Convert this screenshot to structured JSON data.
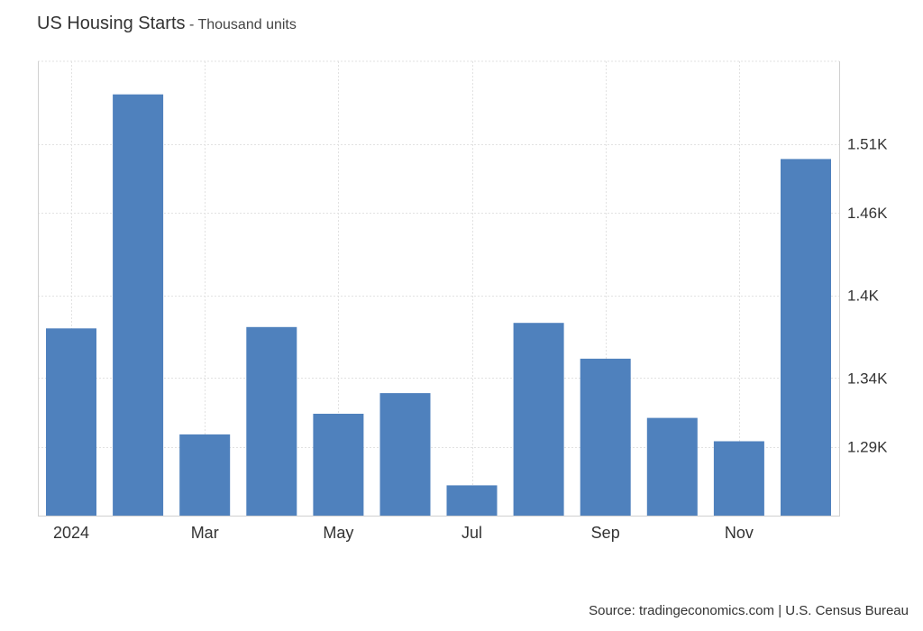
{
  "title": "US Housing Starts",
  "title_separator": " - ",
  "unit_label": "Thousand units",
  "source": "Source: tradingeconomics.com | U.S. Census Bureau",
  "colors": {
    "bar": "#4f81bd",
    "grid": "#e2e2e2",
    "axis": "#d0d0d0",
    "text": "#333333"
  },
  "chart_data": {
    "type": "bar",
    "x_tick_labels": [
      "2024",
      "",
      "Mar",
      "",
      "May",
      "",
      "Jul",
      "",
      "Sep",
      "",
      "Nov",
      ""
    ],
    "series": [
      {
        "values": [
          1376,
          1546,
          1299,
          1377,
          1314,
          1329,
          1262,
          1380,
          1354,
          1311,
          1294,
          1499
        ]
      }
    ],
    "y_ticks": [
      1290,
      1340,
      1400,
      1460,
      1510
    ],
    "y_tick_labels": [
      "1.29K",
      "1.34K",
      "1.4K",
      "1.46K",
      "1.51K"
    ],
    "ylim": [
      1240,
      1570
    ],
    "y_axis_side": "right",
    "grid": true,
    "legend": "none"
  }
}
